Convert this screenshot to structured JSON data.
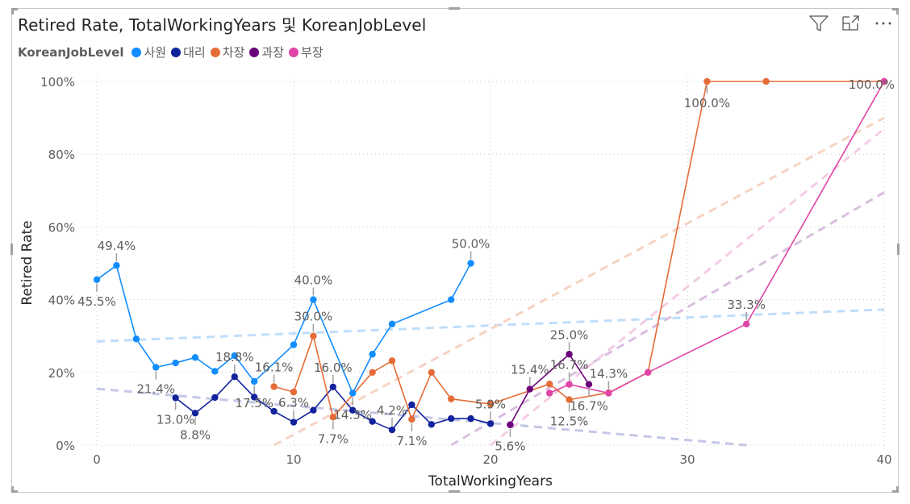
{
  "visual": {
    "title": "Retired Rate, TotalWorkingYears 및 KoreanJobLevel",
    "toolbar": {
      "filter_icon": "filter-icon",
      "focus_icon": "focus-mode-icon",
      "more_icon": "more-options-icon"
    }
  },
  "chart_data": {
    "type": "line",
    "title": "Retired Rate, TotalWorkingYears 및 KoreanJobLevel",
    "xlabel": "TotalWorkingYears",
    "ylabel": "Retired Rate",
    "xlim": [
      0,
      40
    ],
    "ylim": [
      0,
      100
    ],
    "x_ticks": [
      "0",
      "10",
      "20",
      "30",
      "40"
    ],
    "x_tick_values": [
      0,
      10,
      20,
      30,
      40
    ],
    "y_ticks": [
      "0%",
      "20%",
      "40%",
      "60%",
      "80%",
      "100%"
    ],
    "y_tick_values": [
      0,
      20,
      40,
      60,
      80,
      100
    ],
    "grid": true,
    "legend": {
      "title": "KoreanJobLevel",
      "position": "top-left"
    },
    "series": [
      {
        "name": "사원",
        "color": "#118DFF",
        "trend_color": "#BFDDFB",
        "points": [
          {
            "x": 0,
            "y": 45.5,
            "label": "45.5%",
            "label_pos": "below"
          },
          {
            "x": 1,
            "y": 49.4,
            "label": "49.4%",
            "label_pos": "above"
          },
          {
            "x": 2,
            "y": 29.2
          },
          {
            "x": 3,
            "y": 21.4,
            "label": "21.4%",
            "label_pos": "below"
          },
          {
            "x": 4,
            "y": 22.6
          },
          {
            "x": 5,
            "y": 24.1
          },
          {
            "x": 6,
            "y": 20.3
          },
          {
            "x": 7,
            "y": 24.6
          },
          {
            "x": 8,
            "y": 17.5,
            "label": "17.5%",
            "label_pos": "below"
          },
          {
            "x": 10,
            "y": 27.6
          },
          {
            "x": 11,
            "y": 40.0,
            "label": "40.0%",
            "label_pos": "above"
          },
          {
            "x": 13,
            "y": 14.3,
            "label": "14.3%",
            "label_pos": "below"
          },
          {
            "x": 14,
            "y": 25.0
          },
          {
            "x": 15,
            "y": 33.3
          },
          {
            "x": 18,
            "y": 40.0
          },
          {
            "x": 19,
            "y": 50.0,
            "label": "50.0%",
            "label_pos": "above"
          }
        ],
        "trend": {
          "x": [
            0,
            40
          ],
          "y": [
            28.5,
            37.3
          ]
        }
      },
      {
        "name": "대리",
        "color": "#12239E",
        "trend_color": "#C4C7E6",
        "points": [
          {
            "x": 4,
            "y": 13.0,
            "label": "13.0%",
            "label_pos": "below"
          },
          {
            "x": 5,
            "y": 8.8,
            "label": "8.8%",
            "label_pos": "below"
          },
          {
            "x": 6,
            "y": 13.1
          },
          {
            "x": 7,
            "y": 18.8,
            "label": "18.8%",
            "label_pos": "above"
          },
          {
            "x": 8,
            "y": 13.2
          },
          {
            "x": 9,
            "y": 9.3
          },
          {
            "x": 10,
            "y": 6.3,
            "label": "6.3%",
            "label_pos": "above"
          },
          {
            "x": 11,
            "y": 9.6
          },
          {
            "x": 12,
            "y": 16.0,
            "label": "16.0%",
            "label_pos": "above"
          },
          {
            "x": 13,
            "y": 9.6
          },
          {
            "x": 14,
            "y": 6.5
          },
          {
            "x": 15,
            "y": 4.2,
            "label": "4.2%",
            "label_pos": "above"
          },
          {
            "x": 16,
            "y": 11.1
          },
          {
            "x": 17,
            "y": 5.7
          },
          {
            "x": 18,
            "y": 7.3
          },
          {
            "x": 19,
            "y": 7.3
          },
          {
            "x": 20,
            "y": 5.9,
            "label": "5.9%",
            "label_pos": "above"
          }
        ],
        "trend": {
          "x": [
            0,
            33
          ],
          "y": [
            15.5,
            0
          ]
        }
      },
      {
        "name": "차장",
        "color": "#E66C37",
        "trend_color": "#F6D3C3",
        "points": [
          {
            "x": 9,
            "y": 16.1,
            "label": "16.1%",
            "label_pos": "above"
          },
          {
            "x": 10,
            "y": 14.6
          },
          {
            "x": 11,
            "y": 30.0,
            "label": "30.0%",
            "label_pos": "above"
          },
          {
            "x": 12,
            "y": 7.7,
            "label": "7.7%",
            "label_pos": "below"
          },
          {
            "x": 14,
            "y": 20.0
          },
          {
            "x": 15,
            "y": 23.2
          },
          {
            "x": 16,
            "y": 7.1,
            "label": "7.1%",
            "label_pos": "below"
          },
          {
            "x": 17,
            "y": 20.0
          },
          {
            "x": 18,
            "y": 12.7
          },
          {
            "x": 20,
            "y": 11.3
          },
          {
            "x": 23,
            "y": 16.8
          },
          {
            "x": 24,
            "y": 12.5,
            "label": "12.5%",
            "label_pos": "below"
          },
          {
            "x": 26,
            "y": 14.4
          },
          {
            "x": 28,
            "y": 20.0
          },
          {
            "x": 31,
            "y": 100.0,
            "label": "100.0%",
            "label_pos": "below"
          },
          {
            "x": 34,
            "y": 100.0
          },
          {
            "x": 40,
            "y": 100.0
          }
        ],
        "trend": {
          "x": [
            9,
            40
          ],
          "y": [
            0,
            90
          ]
        }
      },
      {
        "name": "과장",
        "color": "#6B007B",
        "trend_color": "#D9BFDE",
        "points": [
          {
            "x": 21,
            "y": 5.6,
            "label": "5.6%",
            "label_pos": "below"
          },
          {
            "x": 22,
            "y": 15.4,
            "label": "15.4%",
            "label_pos": "above"
          },
          {
            "x": 24,
            "y": 25.0,
            "label": "25.0%",
            "label_pos": "above"
          },
          {
            "x": 25,
            "y": 16.7,
            "label": "16.7%",
            "label_pos": "below"
          }
        ],
        "trend": {
          "x": [
            18,
            40
          ],
          "y": [
            0,
            69.5
          ]
        }
      },
      {
        "name": "부장",
        "color": "#E044A7",
        "trend_color": "#F5CCE6",
        "points": [
          {
            "x": 23,
            "y": 14.3
          },
          {
            "x": 24,
            "y": 16.7,
            "label": "16.7%",
            "label_pos": "above"
          },
          {
            "x": 26,
            "y": 14.3,
            "label": "14.3%",
            "label_pos": "above"
          },
          {
            "x": 28,
            "y": 20.0
          },
          {
            "x": 33,
            "y": 33.3,
            "label": "33.3%",
            "label_pos": "above"
          },
          {
            "x": 40,
            "y": 100.0,
            "label": "100.0%",
            "label_pos": "right"
          }
        ],
        "trend": {
          "x": [
            20,
            40
          ],
          "y": [
            0,
            87
          ]
        }
      }
    ]
  }
}
